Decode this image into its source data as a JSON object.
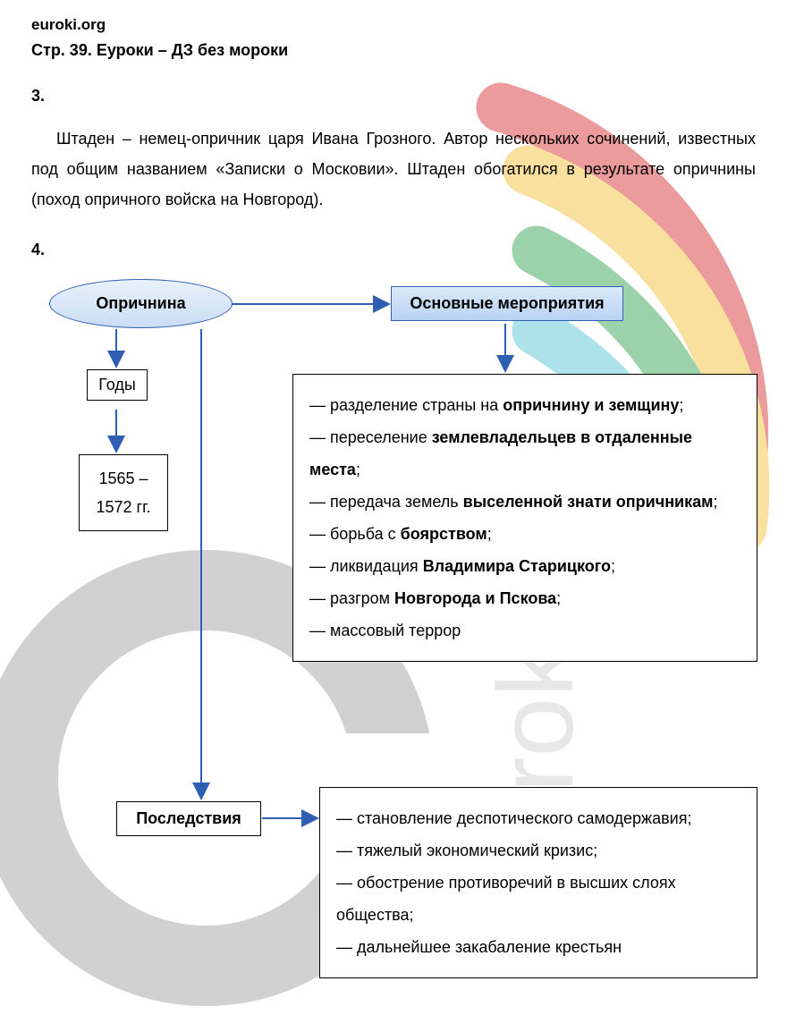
{
  "site": "euroki.org",
  "page_title": "Стр. 39. Еуроки – ДЗ без мороки",
  "q3": {
    "num": "3.",
    "text": "Штаден – немец-опричник царя Ивана Грозного. Автор нескольких сочинений, известных под общим названием «Записки о Московии». Штаден обогатился в результате опричнины (поход опричного войска на Новгород)."
  },
  "q4": {
    "num": "4.",
    "root": "Опричнина",
    "years_label": "Годы",
    "years_value": "1565 – 1572 гг.",
    "measures_title": "Основные мероприятия",
    "measures_items": [
      {
        "prefix": "— разделение страны на ",
        "bold": "опричнину и земщину",
        "suffix": ";"
      },
      {
        "prefix": "— переселение ",
        "bold": "землевладельцев в отдаленные места",
        "suffix": ";"
      },
      {
        "prefix": "— передача земель ",
        "bold": "выселенной знати опричникам",
        "suffix": ";"
      },
      {
        "prefix": "— борьба с ",
        "bold": "боярством",
        "suffix": ";"
      },
      {
        "prefix": "— ликвидация ",
        "bold": "Владимира Старицкого",
        "suffix": ";"
      },
      {
        "prefix": "— разгром ",
        "bold": "Новгорода и Пскова",
        "suffix": ";"
      },
      {
        "prefix": "— массовый террор",
        "bold": "",
        "suffix": ""
      }
    ],
    "consequences_title": "Последствия",
    "consequences_items": [
      "— становление деспотического самодержавия;",
      "— тяжелый экономический кризис;",
      "— обострение противоречий в высших слоях общества;",
      "— дальнейшее закабаление крестьян"
    ]
  },
  "diagram_style": {
    "arrow_color": "#2f5fb3",
    "arrow_width": 2,
    "ellipse_fill_top": "#e9f1fb",
    "ellipse_fill_bottom": "#c9ddf5",
    "bluebox_fill_top": "#dbe9f9",
    "bluebox_fill_bottom": "#b8d3f3",
    "border_color": "#2f5fb3",
    "plain_border": "#000000",
    "background": "#ffffff",
    "font_size": 18,
    "bold_weight": 700
  },
  "watermark": {
    "colors": [
      "#d93a3a",
      "#f5c242",
      "#3aa655",
      "#5fc7d6",
      "#7a7a7a"
    ],
    "text": "euroki",
    "text_color": "#bdbdbd"
  }
}
